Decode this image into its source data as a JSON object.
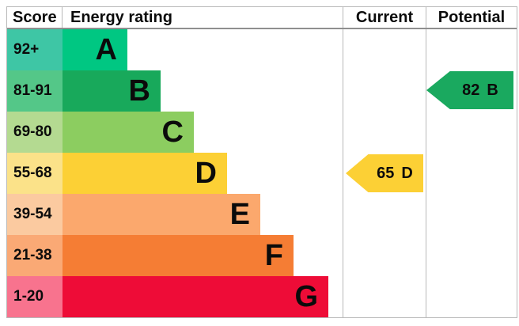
{
  "chart_data": {
    "type": "bar",
    "title": "Energy rating",
    "categories": [
      "A",
      "B",
      "C",
      "D",
      "E",
      "F",
      "G"
    ],
    "score_ranges": [
      "92+",
      "81-91",
      "69-80",
      "55-68",
      "39-54",
      "21-38",
      "1-20"
    ],
    "columns": [
      "Score",
      "Energy rating",
      "Current",
      "Potential"
    ],
    "current": {
      "score": 65,
      "rating": "D"
    },
    "potential": {
      "score": 82,
      "rating": "B"
    }
  },
  "table": {
    "headers": {
      "score": "Score",
      "rating": "Energy rating",
      "current": "Current",
      "potential": "Potential"
    },
    "rows": [
      {
        "score": "92+",
        "letter": "A",
        "score_color": "#3ec6a5",
        "bar_color": "#00c782"
      },
      {
        "score": "81-91",
        "letter": "B",
        "score_color": "#54c788",
        "bar_color": "#18a95b"
      },
      {
        "score": "69-80",
        "letter": "C",
        "score_color": "#b4da91",
        "bar_color": "#8ccd60"
      },
      {
        "score": "55-68",
        "letter": "D",
        "score_color": "#fbe289",
        "bar_color": "#fcd035"
      },
      {
        "score": "39-54",
        "letter": "E",
        "score_color": "#fbcaa0",
        "bar_color": "#fba86d"
      },
      {
        "score": "21-38",
        "letter": "F",
        "score_color": "#faa975",
        "bar_color": "#f57d34"
      },
      {
        "score": "1-20",
        "letter": "G",
        "score_color": "#f8738e",
        "bar_color": "#ee0c37"
      }
    ],
    "current": {
      "value": "65",
      "letter": "D",
      "color": "#fcd035"
    },
    "potential": {
      "value": "82",
      "letter": "B",
      "color": "#1aa95f"
    }
  }
}
